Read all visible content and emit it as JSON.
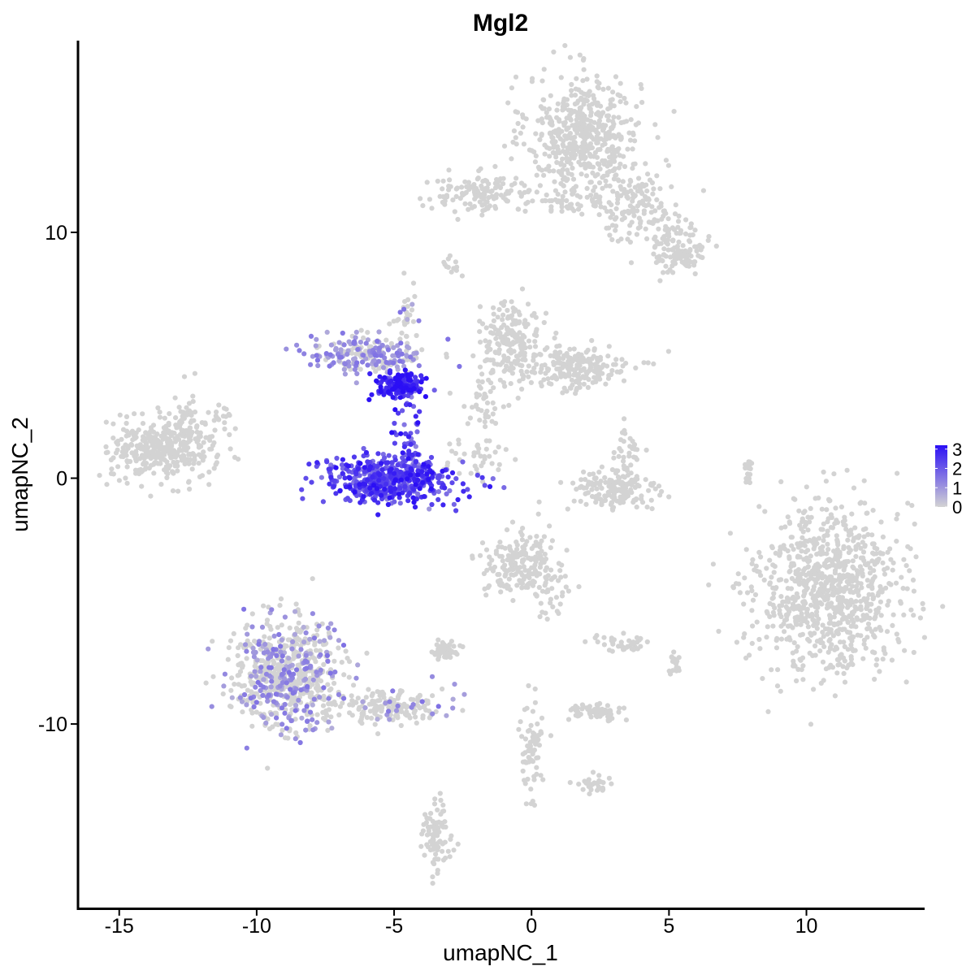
{
  "chart_data": {
    "type": "scatter",
    "title": "Mgl2",
    "xlabel": "umapNC_1",
    "ylabel": "umapNC_2",
    "xlim": [
      -16.5,
      14.3
    ],
    "ylim": [
      -17.5,
      17.8
    ],
    "x_ticks": [
      -15,
      -10,
      -5,
      0,
      5,
      10
    ],
    "x_tick_labels": [
      "-15",
      "-10",
      "-5",
      "0",
      "5",
      "10"
    ],
    "y_ticks": [
      -10,
      0,
      10
    ],
    "y_tick_labels": [
      "-10",
      "0",
      "10"
    ],
    "grid": false,
    "legend": {
      "placement": "right",
      "type": "colorbar",
      "labels": [
        "3",
        "2",
        "1",
        "0"
      ],
      "min": 0,
      "max": 3.2,
      "low_color": "#d3d3d3",
      "high_color": "#2b0ff5"
    },
    "expression_color_scale": {
      "low": "#d3d3d3",
      "high": "#2b0ff5"
    },
    "clusters": [
      {
        "cx": 1.9,
        "cy": 14.0,
        "sx": 1.2,
        "sy": 1.4,
        "n": 520,
        "expr": 0
      },
      {
        "cx": 3.8,
        "cy": 11.0,
        "sx": 1.0,
        "sy": 0.8,
        "n": 150,
        "expr": 0
      },
      {
        "cx": 5.4,
        "cy": 9.3,
        "sx": 0.55,
        "sy": 0.6,
        "n": 120,
        "expr": 0
      },
      {
        "cx": -1.7,
        "cy": 11.6,
        "sx": 1.2,
        "sy": 0.45,
        "n": 140,
        "expr": 0
      },
      {
        "cx": 1.2,
        "cy": 11.2,
        "sx": 0.9,
        "sy": 0.35,
        "n": 40,
        "expr": 0
      },
      {
        "cx": -13.4,
        "cy": 1.2,
        "sx": 1.1,
        "sy": 0.75,
        "n": 360,
        "expr": 0
      },
      {
        "cx": -12.5,
        "cy": 2.0,
        "sx": 0.45,
        "sy": 0.8,
        "n": 40,
        "expr": 0
      },
      {
        "cx": -0.8,
        "cy": 5.6,
        "sx": 0.65,
        "sy": 0.9,
        "n": 180,
        "expr": 0
      },
      {
        "cx": 1.5,
        "cy": 4.5,
        "sx": 1.3,
        "sy": 0.55,
        "n": 220,
        "expr": 0
      },
      {
        "cx": 3.0,
        "cy": -0.5,
        "sx": 1.0,
        "sy": 0.55,
        "n": 150,
        "expr": 0
      },
      {
        "cx": 3.4,
        "cy": 0.8,
        "sx": 0.35,
        "sy": 0.9,
        "n": 40,
        "expr": 0
      },
      {
        "cx": 10.8,
        "cy": -4.5,
        "sx": 1.55,
        "sy": 2.0,
        "n": 900,
        "expr": 0
      },
      {
        "cx": -0.5,
        "cy": -3.5,
        "sx": 0.7,
        "sy": 0.8,
        "n": 180,
        "expr": 0
      },
      {
        "cx": 0.6,
        "cy": -4.6,
        "sx": 0.4,
        "sy": 0.9,
        "n": 40,
        "expr": 0
      },
      {
        "cx": -8.8,
        "cy": -8.0,
        "sx": 1.2,
        "sy": 1.3,
        "n": 700,
        "expr": 0.25
      },
      {
        "cx": -5.0,
        "cy": -9.3,
        "sx": 1.1,
        "sy": 0.4,
        "n": 160,
        "expr": 0.2
      },
      {
        "cx": -3.1,
        "cy": -7.0,
        "sx": 0.35,
        "sy": 0.2,
        "n": 50,
        "expr": 0
      },
      {
        "cx": 2.4,
        "cy": -9.5,
        "sx": 0.5,
        "sy": 0.2,
        "n": 70,
        "expr": 0
      },
      {
        "cx": 3.4,
        "cy": -6.8,
        "sx": 0.6,
        "sy": 0.25,
        "n": 40,
        "expr": 0
      },
      {
        "cx": 0.0,
        "cy": -11.0,
        "sx": 0.25,
        "sy": 1.0,
        "n": 70,
        "expr": 0
      },
      {
        "cx": 2.2,
        "cy": -12.5,
        "sx": 0.35,
        "sy": 0.25,
        "n": 30,
        "expr": 0
      },
      {
        "cx": -3.5,
        "cy": -14.5,
        "sx": 0.3,
        "sy": 0.9,
        "n": 90,
        "expr": 0
      },
      {
        "cx": -6.0,
        "cy": 5.0,
        "sx": 1.2,
        "sy": 0.45,
        "n": 160,
        "expr": 0.8
      },
      {
        "cx": -4.8,
        "cy": 3.8,
        "sx": 0.5,
        "sy": 0.3,
        "n": 160,
        "expr": 2.8
      },
      {
        "cx": -4.5,
        "cy": 1.8,
        "sx": 0.35,
        "sy": 0.9,
        "n": 40,
        "expr": 2.3
      },
      {
        "cx": -5.2,
        "cy": -0.1,
        "sx": 1.4,
        "sy": 0.55,
        "n": 520,
        "expr": 2.2
      },
      {
        "cx": -4.6,
        "cy": 6.5,
        "sx": 0.3,
        "sy": 0.8,
        "n": 35,
        "expr": 0.1
      },
      {
        "cx": -2.2,
        "cy": 0.8,
        "sx": 0.8,
        "sy": 0.6,
        "n": 40,
        "expr": 0
      },
      {
        "cx": -1.7,
        "cy": 3.2,
        "sx": 0.35,
        "sy": 0.8,
        "n": 40,
        "expr": 0
      },
      {
        "cx": 7.9,
        "cy": 0.2,
        "sx": 0.1,
        "sy": 0.35,
        "n": 18,
        "expr": 0
      },
      {
        "cx": 5.2,
        "cy": -7.6,
        "sx": 0.2,
        "sy": 0.35,
        "n": 18,
        "expr": 0
      },
      {
        "cx": -11.2,
        "cy": 2.4,
        "sx": 0.3,
        "sy": 0.4,
        "n": 15,
        "expr": 0
      },
      {
        "cx": -2.9,
        "cy": 8.7,
        "sx": 0.25,
        "sy": 0.2,
        "n": 12,
        "expr": 0
      },
      {
        "cx": -5.8,
        "cy": 5.0,
        "sx": 0.8,
        "sy": 0.4,
        "n": 60,
        "expr": 0
      }
    ]
  }
}
